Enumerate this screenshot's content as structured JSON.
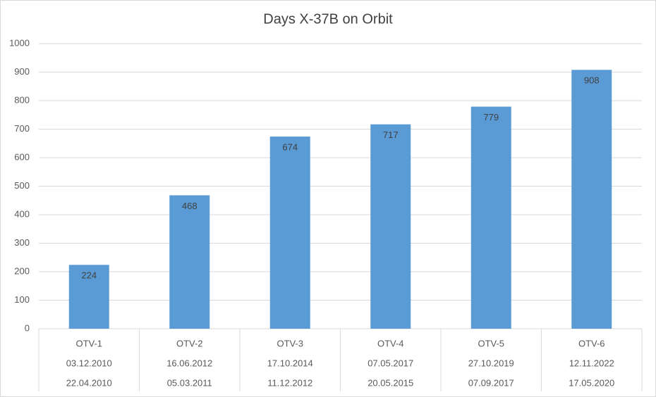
{
  "chart_data": {
    "type": "bar",
    "title": "Days X-37B on Orbit",
    "categories": [
      [
        "OTV-1",
        "03.12.2010",
        "22.04.2010"
      ],
      [
        "OTV-2",
        "16.06.2012",
        "05.03.2011"
      ],
      [
        "OTV-3",
        "17.10.2014",
        "11.12.2012"
      ],
      [
        "OTV-4",
        "07.05.2017",
        "20.05.2015"
      ],
      [
        "OTV-5",
        "27.10.2019",
        "07.09.2017"
      ],
      [
        "OTV-6",
        "12.11.2022",
        "17.05.2020"
      ]
    ],
    "values": [
      224,
      468,
      674,
      717,
      779,
      908
    ],
    "color": "#5b9bd5",
    "ylim": [
      0,
      1000
    ],
    "yticks": [
      0,
      100,
      200,
      300,
      400,
      500,
      600,
      700,
      800,
      900,
      1000
    ],
    "grid": true
  }
}
